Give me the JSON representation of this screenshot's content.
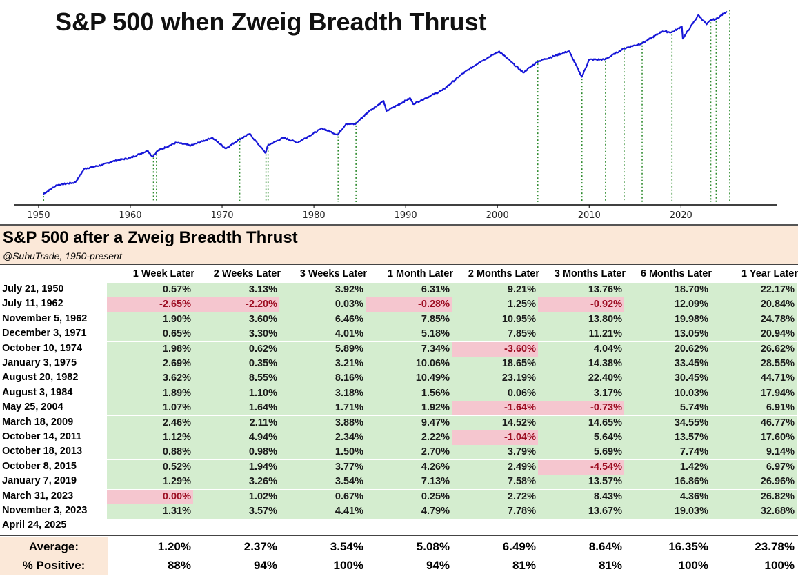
{
  "chart_data": {
    "type": "line",
    "title": "S&P 500 when Zweig Breadth Thrust",
    "xlabel": "",
    "ylabel": "",
    "y_scale": "log",
    "xlim": [
      1947.3,
      2030.5
    ],
    "ylim": [
      15,
      6200
    ],
    "x_ticks": [
      1950,
      1960,
      1970,
      1980,
      1990,
      2000,
      2010,
      2020
    ],
    "line_color": "#1616d8",
    "marker_color": "#2e8b2e",
    "series": [
      {
        "x": [
          1950.5,
          1952,
          1954,
          1955,
          1957,
          1958,
          1960,
          1961.9,
          1962.4,
          1963,
          1965,
          1966.6,
          1968.9,
          1970.4,
          1971.9,
          1973,
          1974.75,
          1975,
          1976.7,
          1978.2,
          1980.9,
          1982.6,
          1983.5,
          1984.5,
          1986,
          1987.6,
          1987.9,
          1990.5,
          1990.8,
          1994,
          1995,
          1996,
          1998,
          2000.2,
          2002.8,
          2004.4,
          2007.8,
          2009.2,
          2010,
          2011.7,
          2013.8,
          2015.8,
          2018,
          2019,
          2020.1,
          2020.2,
          2021.9,
          2022.8,
          2023.3,
          2023.8,
          2025.0
        ],
        "values": [
          18,
          24,
          26,
          40,
          45,
          50,
          56,
          70,
          58,
          70,
          90,
          82,
          105,
          75,
          100,
          118,
          65,
          83,
          105,
          90,
          140,
          115,
          162,
          160,
          240,
          330,
          240,
          360,
          300,
          460,
          580,
          740,
          1100,
          1550,
          800,
          1130,
          1560,
          700,
          1200,
          1200,
          1700,
          2000,
          2900,
          2800,
          3380,
          2300,
          4800,
          3600,
          4150,
          4200,
          5400
        ]
      }
    ],
    "thrust_years": [
      1950.55,
      1962.52,
      1962.85,
      1971.92,
      1974.78,
      1975.01,
      1982.64,
      1984.59,
      2004.4,
      2009.21,
      2011.78,
      2013.8,
      2015.77,
      2019.02,
      2023.25,
      2023.84,
      2025.31
    ]
  },
  "table": {
    "title": "S&P 500 after a Zweig Breadth Thrust",
    "subtitle": "@SubuTrade, 1950-present",
    "columns": [
      "1 Week Later",
      "2 Weeks Later",
      "3 Weeks Later",
      "1 Month Later",
      "2 Months Later",
      "3 Months Later",
      "6 Months Later",
      "1 Year Later"
    ],
    "rows": [
      {
        "date": "July 21, 1950",
        "values": [
          "0.57%",
          "3.13%",
          "3.92%",
          "6.31%",
          "9.21%",
          "13.76%",
          "18.70%",
          "22.17%"
        ]
      },
      {
        "date": "July 11, 1962",
        "values": [
          "-2.65%",
          "-2.20%",
          "0.03%",
          "-0.28%",
          "1.25%",
          "-0.92%",
          "12.09%",
          "20.84%"
        ]
      },
      {
        "date": "November 5, 1962",
        "values": [
          "1.90%",
          "3.60%",
          "6.46%",
          "7.85%",
          "10.95%",
          "13.80%",
          "19.98%",
          "24.78%"
        ]
      },
      {
        "date": "December 3, 1971",
        "values": [
          "0.65%",
          "3.30%",
          "4.01%",
          "5.18%",
          "7.85%",
          "11.21%",
          "13.05%",
          "20.94%"
        ]
      },
      {
        "date": "October 10, 1974",
        "values": [
          "1.98%",
          "0.62%",
          "5.89%",
          "7.34%",
          "-3.60%",
          "4.04%",
          "20.62%",
          "26.62%"
        ]
      },
      {
        "date": "January 3, 1975",
        "values": [
          "2.69%",
          "0.35%",
          "3.21%",
          "10.06%",
          "18.65%",
          "14.38%",
          "33.45%",
          "28.55%"
        ]
      },
      {
        "date": "August 20, 1982",
        "values": [
          "3.62%",
          "8.55%",
          "8.16%",
          "10.49%",
          "23.19%",
          "22.40%",
          "30.45%",
          "44.71%"
        ]
      },
      {
        "date": "August 3, 1984",
        "values": [
          "1.89%",
          "1.10%",
          "3.18%",
          "1.56%",
          "0.06%",
          "3.17%",
          "10.03%",
          "17.94%"
        ]
      },
      {
        "date": "May 25, 2004",
        "values": [
          "1.07%",
          "1.64%",
          "1.71%",
          "1.92%",
          "-1.64%",
          "-0.73%",
          "5.74%",
          "6.91%"
        ]
      },
      {
        "date": "March 18, 2009",
        "values": [
          "2.46%",
          "2.11%",
          "3.88%",
          "9.47%",
          "14.52%",
          "14.65%",
          "34.55%",
          "46.77%"
        ]
      },
      {
        "date": "October 14, 2011",
        "values": [
          "1.12%",
          "4.94%",
          "2.34%",
          "2.22%",
          "-1.04%",
          "5.64%",
          "13.57%",
          "17.60%"
        ]
      },
      {
        "date": "October 18, 2013",
        "values": [
          "0.88%",
          "0.98%",
          "1.50%",
          "2.70%",
          "3.79%",
          "5.69%",
          "7.74%",
          "9.14%"
        ]
      },
      {
        "date": "October 8, 2015",
        "values": [
          "0.52%",
          "1.94%",
          "3.77%",
          "4.26%",
          "2.49%",
          "-4.54%",
          "1.42%",
          "6.97%"
        ]
      },
      {
        "date": "January 7, 2019",
        "values": [
          "1.29%",
          "3.26%",
          "3.54%",
          "7.13%",
          "7.58%",
          "13.57%",
          "16.86%",
          "26.96%"
        ]
      },
      {
        "date": "March 31, 2023",
        "values": [
          "0.00%",
          "1.02%",
          "0.67%",
          "0.25%",
          "2.72%",
          "8.43%",
          "4.36%",
          "26.82%"
        ]
      },
      {
        "date": "November 3, 2023",
        "values": [
          "1.31%",
          "3.57%",
          "4.41%",
          "4.79%",
          "7.78%",
          "13.67%",
          "19.03%",
          "32.68%"
        ]
      },
      {
        "date": "April 24, 2025",
        "values": [
          "",
          "",
          "",
          "",
          "",
          "",
          "",
          ""
        ]
      }
    ],
    "summary": [
      {
        "label": "Average:",
        "values": [
          "1.20%",
          "2.37%",
          "3.54%",
          "5.08%",
          "6.49%",
          "8.64%",
          "16.35%",
          "23.78%"
        ]
      },
      {
        "label": "% Positive:",
        "values": [
          "88%",
          "94%",
          "100%",
          "94%",
          "81%",
          "81%",
          "100%",
          "100%"
        ]
      }
    ]
  }
}
